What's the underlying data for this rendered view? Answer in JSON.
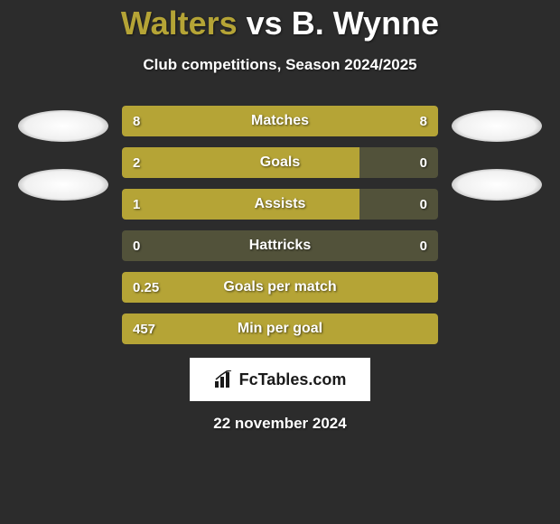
{
  "title": {
    "player1": "Walters",
    "vs": "vs",
    "player2": "B. Wynne"
  },
  "subtitle": "Club competitions, Season 2024/2025",
  "colors": {
    "background": "#2c2c2c",
    "accent": "#b5a436",
    "bar_bg": "#52523a",
    "text": "#ffffff",
    "title_color": "#b5a436"
  },
  "stats": [
    {
      "label": "Matches",
      "left_value": "8",
      "right_value": "8",
      "left_pct": 50,
      "right_pct": 50,
      "full": true
    },
    {
      "label": "Goals",
      "left_value": "2",
      "right_value": "0",
      "left_pct": 75,
      "right_pct": 0,
      "full": false
    },
    {
      "label": "Assists",
      "left_value": "1",
      "right_value": "0",
      "left_pct": 75,
      "right_pct": 0,
      "full": false
    },
    {
      "label": "Hattricks",
      "left_value": "0",
      "right_value": "0",
      "left_pct": 0,
      "right_pct": 0,
      "full": false
    },
    {
      "label": "Goals per match",
      "left_value": "0.25",
      "right_value": "",
      "left_pct": 100,
      "right_pct": 0,
      "full": true
    },
    {
      "label": "Min per goal",
      "left_value": "457",
      "right_value": "",
      "left_pct": 100,
      "right_pct": 0,
      "full": true
    }
  ],
  "logo": {
    "text": "FcTables.com"
  },
  "date": "22 november 2024"
}
